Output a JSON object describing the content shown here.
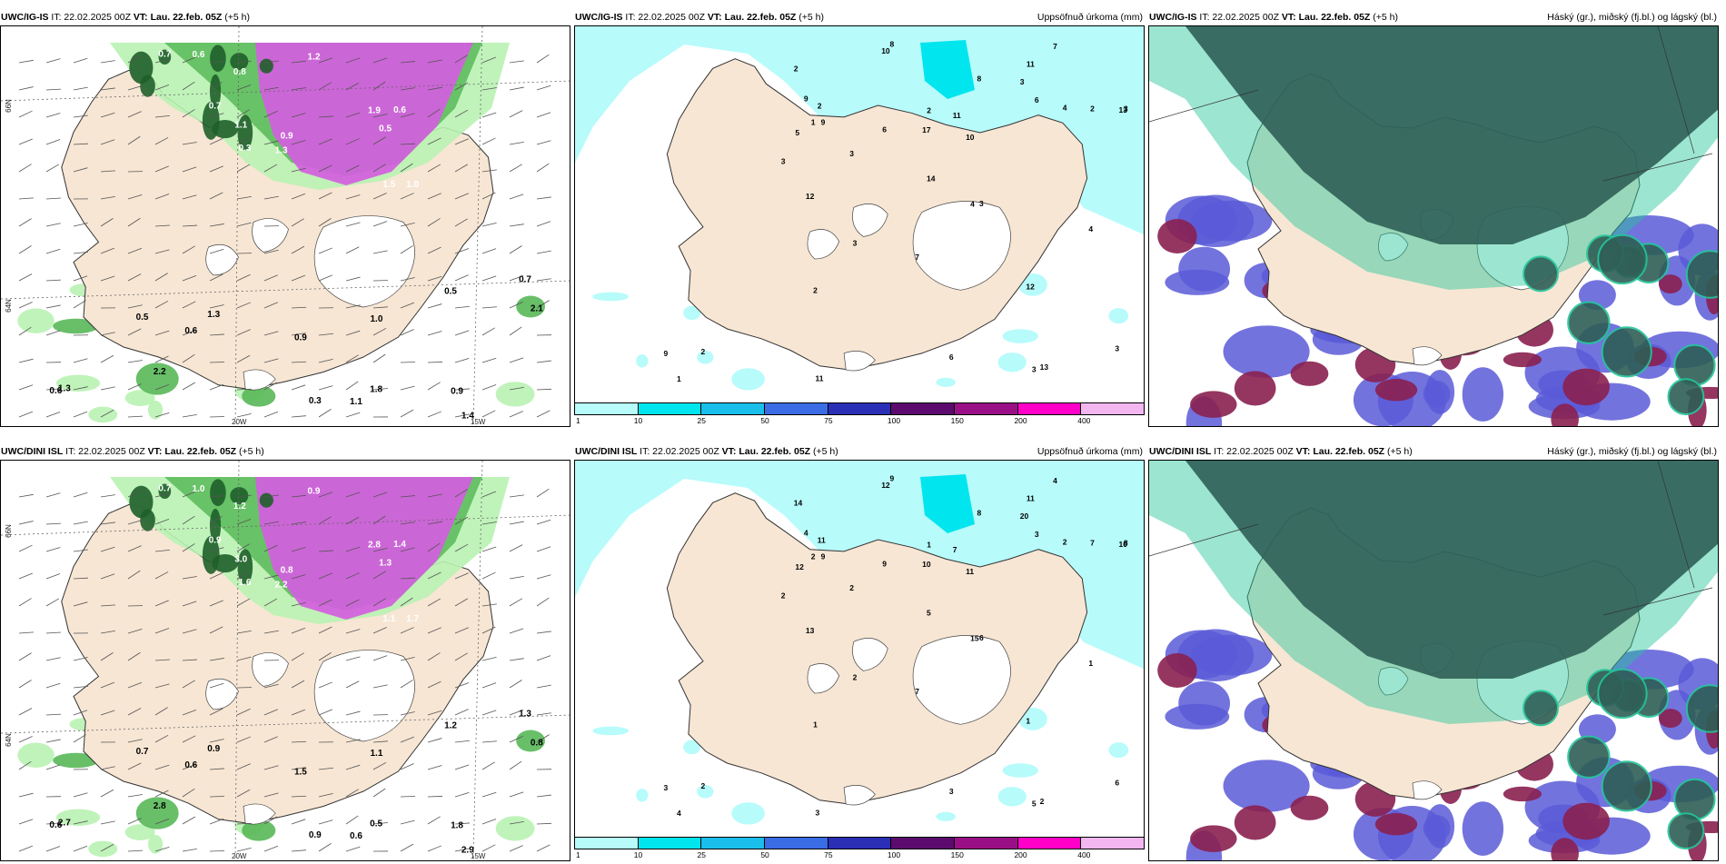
{
  "rows": [
    {
      "model": "UWC/IG-IS",
      "panels": [
        {
          "type": "wind",
          "title_model": "UWC/IG-IS",
          "title_it": " IT: 22.02.2025 00Z ",
          "title_vt_label": "VT:",
          "title_vt": " Lau. 22.feb. 05Z",
          "title_lead": " (+5 h)",
          "right_title": "",
          "lat_labels": [
            "66N",
            "64N"
          ],
          "lon_labels": [
            "20W",
            "15W"
          ],
          "values": [
            "0.9",
            "0.7",
            "0.6",
            "0.5",
            "1.0",
            "0.8",
            "1.3",
            "1.1",
            "0.3",
            "1.9",
            "0.6",
            "1.2",
            "0.7",
            "1.5",
            "0.6",
            "1.8",
            "0.9",
            "2.1",
            "0.7",
            "1.3",
            "1.4",
            "0.5",
            "1.1",
            "2.2",
            "0.9",
            "1.0",
            "0.3",
            "1.3",
            "0.5",
            "0.6"
          ]
        },
        {
          "type": "precip",
          "title_model": "UWC/IG-IS",
          "title_it": " IT: 22.02.2025 00Z ",
          "title_vt_label": "VT:",
          "title_vt": " Lau. 22.feb. 05Z",
          "title_lead": " (+5 h)",
          "right_title": "Uppsöfnuð úrkoma (mm)",
          "numbers": [
            "8",
            "11",
            "13",
            "17",
            "10",
            "9",
            "2",
            "3",
            "5",
            "8",
            "11",
            "12",
            "10",
            "6",
            "4",
            "3",
            "14",
            "7",
            "6",
            "3",
            "2",
            "1",
            "3",
            "2",
            "3",
            "9",
            "2",
            "4",
            "13",
            "9",
            "3",
            "7",
            "2",
            "2",
            "6",
            "3",
            "12",
            "11",
            "4",
            "3",
            "1"
          ],
          "legend_ticks": [
            "1",
            "10",
            "25",
            "50",
            "75",
            "100",
            "150",
            "200",
            "400"
          ],
          "legend_colors": [
            "#b7fbfb",
            "#00e5ee",
            "#19bfea",
            "#3a6de5",
            "#2a2fb5",
            "#5c0a6e",
            "#9b0f86",
            "#ff00c8",
            "#f3b6f0"
          ]
        },
        {
          "type": "cloud",
          "title_model": "UWC/IG-IS",
          "title_it": " IT: 22.02.2025 00Z ",
          "title_vt_label": "VT:",
          "title_vt": " Lau. 22.feb. 05Z",
          "title_lead": " (+5 h)",
          "right_title": "Háský (gr.), miðský (fj.bl.) og lágský (bl.)"
        }
      ]
    },
    {
      "model": "UWC/DINI ISL",
      "panels": [
        {
          "type": "wind",
          "title_model": "UWC/DINI ISL",
          "title_it": " IT: 22.02.2025 00Z ",
          "title_vt_label": "VT:",
          "title_vt": " Lau. 22.feb. 05Z",
          "title_lead": " (+5 h)",
          "right_title": "",
          "lat_labels": [
            "66N",
            "64N"
          ],
          "lon_labels": [
            "20W",
            "15W"
          ],
          "values": [
            "0.8",
            "0.9",
            "1.0",
            "1.3",
            "1.7",
            "1.2",
            "2.2",
            "3.0",
            "1.6",
            "2.8",
            "1.4",
            "0.9",
            "0.7",
            "1.1",
            "0.6",
            "0.5",
            "1.5",
            "0.8",
            "1.3",
            "0.9",
            "2.9",
            "0.7",
            "0.6",
            "2.8",
            "1.8",
            "1.1",
            "0.9",
            "2.7",
            "1.2",
            "0.6"
          ]
        },
        {
          "type": "precip",
          "title_model": "UWC/DINI ISL",
          "title_it": " IT: 22.02.2025 00Z ",
          "title_vt_label": "VT:",
          "title_vt": " Lau. 22.feb. 05Z",
          "title_lead": " (+5 h)",
          "right_title": "Uppsöfnuð úrkoma (mm)",
          "numbers": [
            "9",
            "11",
            "10",
            "10",
            "11",
            "9",
            "14",
            "20",
            "12",
            "8",
            "7",
            "13",
            "12",
            "9",
            "15",
            "6",
            "5",
            "4",
            "3",
            "2",
            "11",
            "2",
            "8",
            "7",
            "2",
            "4",
            "1",
            "2",
            "2",
            "3",
            "5",
            "7",
            "2",
            "1",
            "3",
            "6",
            "1",
            "3",
            "1",
            "2",
            "4"
          ],
          "legend_ticks": [
            "1",
            "10",
            "25",
            "50",
            "75",
            "100",
            "150",
            "200",
            "400"
          ],
          "legend_colors": [
            "#b7fbfb",
            "#00e5ee",
            "#19bfea",
            "#3a6de5",
            "#2a2fb5",
            "#5c0a6e",
            "#9b0f86",
            "#ff00c8",
            "#f3b6f0"
          ]
        },
        {
          "type": "cloud",
          "title_model": "UWC/DINI ISL",
          "title_it": " IT: 22.02.2025 00Z ",
          "title_vt_label": "VT:",
          "title_vt": " Lau. 22.feb. 05Z",
          "title_lead": " (+5 h)",
          "right_title": "Háský (gr.), miðský (fj.bl.) og lágský (bl.)"
        }
      ]
    }
  ],
  "colors": {
    "land": "#f7e6d4",
    "glacier": "#ffffff",
    "precip_light": "#b7fbfb",
    "precip_mid": "#00e5ee",
    "wind_light_green": "#b9f2b3",
    "wind_mid_green": "#58b858",
    "wind_dark_green": "#1f5f2a",
    "wind_magenta": "#d45ee0",
    "cloud_high": "#2f5f56",
    "cloud_mid": "#5a5ad8",
    "cloud_low": "#8a2050",
    "cloud_teal": "#24c59a"
  }
}
